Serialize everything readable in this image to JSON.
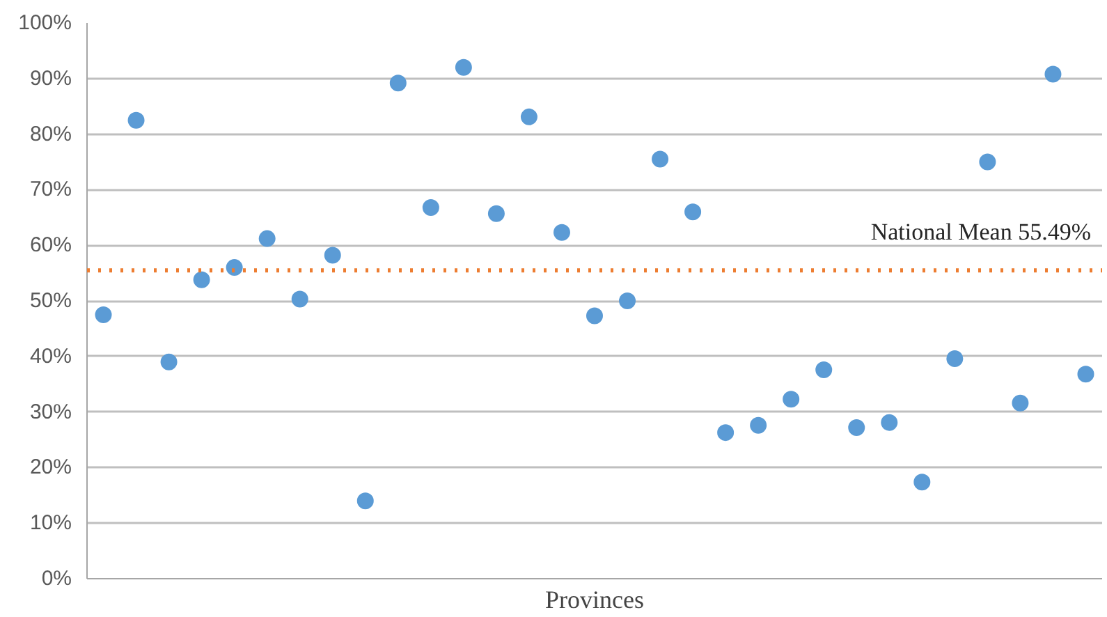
{
  "chart_data": {
    "type": "scatter",
    "xlabel": "Provinces",
    "categories": [
      null,
      null,
      null,
      null,
      null,
      null,
      null,
      null,
      null,
      null,
      null,
      null,
      null,
      null,
      null,
      null,
      null,
      null,
      null,
      null,
      null,
      null,
      null,
      null,
      null,
      null,
      null,
      null,
      null,
      null,
      null
    ],
    "series": [
      {
        "color": "#5b9bd5",
        "values": [
          47.5,
          82.5,
          39,
          53.8,
          56,
          61.2,
          50.3,
          58.2,
          14,
          89.2,
          66.8,
          92,
          65.7,
          83.1,
          62.3,
          47.3,
          50,
          75.5,
          66,
          26.3,
          27.6,
          32.3,
          37.6,
          27.2,
          28.1,
          17.4,
          39.6,
          75,
          31.6,
          90.8,
          36.8
        ]
      }
    ],
    "ylim": [
      0,
      100
    ],
    "yticks": [
      {
        "value": 0,
        "label": "0%"
      },
      {
        "value": 10,
        "label": "10%"
      },
      {
        "value": 20,
        "label": "20%"
      },
      {
        "value": 30,
        "label": "30%"
      },
      {
        "value": 40,
        "label": "40%"
      },
      {
        "value": 50,
        "label": "50%"
      },
      {
        "value": 60,
        "label": "60%"
      },
      {
        "value": 70,
        "label": "70%"
      },
      {
        "value": 80,
        "label": "80%"
      },
      {
        "value": 90,
        "label": "90%"
      },
      {
        "value": 100,
        "label": "100%"
      }
    ],
    "ref_lines": [
      {
        "axis": "y",
        "value": 55.49,
        "label": "National Mean 55.49%",
        "color": "#ed7d31",
        "line_style": "dotted"
      }
    ],
    "grid": "y",
    "marker": "circle",
    "tick_labels": "y"
  }
}
